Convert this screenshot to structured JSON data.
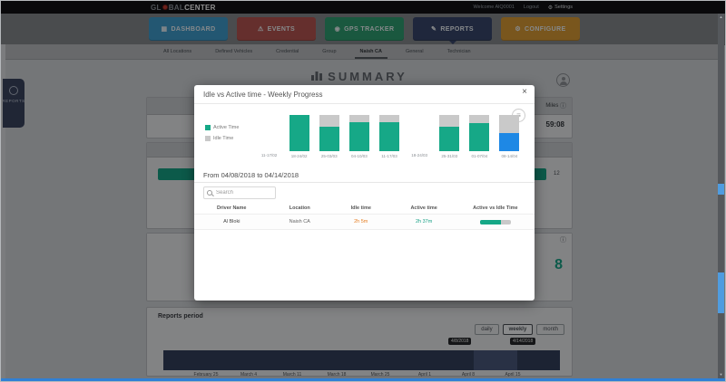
{
  "topbar": {
    "logo": {
      "prefix": "GL",
      "mid": "BAL",
      "suffix": "CENTER"
    },
    "welcome": "Welcome AlQ0001",
    "logout": "Logout",
    "settings": "Settings"
  },
  "nav": {
    "items": [
      {
        "id": "dashboard",
        "label": "DASHBOARD",
        "color": "#3f9ccc",
        "icon": "dashboard-icon",
        "active": false
      },
      {
        "id": "events",
        "label": "EVENTS",
        "color": "#b55550",
        "icon": "alert-icon",
        "active": false
      },
      {
        "id": "gps",
        "label": "GPS TRACKER",
        "color": "#2f9e70",
        "icon": "pin-icon",
        "active": false
      },
      {
        "id": "reports",
        "label": "REPORTS",
        "color": "#38466b",
        "icon": "pencil-icon",
        "active": true
      },
      {
        "id": "configure",
        "label": "CONFIGURE",
        "color": "#d89a35",
        "icon": "gear-icon",
        "active": false
      }
    ]
  },
  "subnav": {
    "items": [
      "All Locations",
      "Defined Vehicles",
      "Credential",
      "Group",
      "Naish CA",
      "General",
      "Technician"
    ],
    "active_index": 4
  },
  "page": {
    "title": "SUMMARY"
  },
  "side_handle": {
    "label": "REPORTS"
  },
  "panels": {
    "miles": {
      "title": "Miles",
      "value": "59:08"
    },
    "gauge": {
      "value": "12"
    },
    "stats": {
      "value": "8"
    }
  },
  "reports_period": {
    "title": "Reports period",
    "buttons": [
      "daily",
      "weekly",
      "month"
    ],
    "active_button": "weekly",
    "tooltip_start": "4/8/2018",
    "tooltip_end": "4/14/2018",
    "timeline_labels": [
      "February 25",
      "March 4",
      "March 11",
      "March 18",
      "March 25",
      "April 1",
      "April 8",
      "April 15"
    ]
  },
  "modal": {
    "title": "Idle vs Active time - Weekly Progress",
    "close_label": "×",
    "legend": [
      {
        "label": "Active Time",
        "color": "#16a887"
      },
      {
        "label": "Idle Time",
        "color": "#c9c9c9"
      }
    ],
    "chart_data": {
      "type": "bar",
      "stacked": "percent",
      "categories": [
        "11-17/02",
        "18-24/02",
        "25-03/03",
        "04-10/03",
        "11-17/03",
        "18-24/03",
        "25-31/03",
        "01-07/04",
        "08-14/04"
      ],
      "series": [
        {
          "name": "Active Time",
          "values": [
            null,
            100,
            68,
            81,
            81,
            null,
            68,
            77,
            51
          ]
        },
        {
          "name": "Idle Time",
          "values": [
            null,
            0,
            32,
            19,
            19,
            null,
            32,
            23,
            49
          ]
        }
      ],
      "selected_index": 8,
      "selected_color": "#1e88e5",
      "colors": {
        "active": "#16a887",
        "idle": "#c9c9c9"
      },
      "legend_position": "left",
      "grid": false
    },
    "date_range": "From 04/08/2018 to 04/14/2018",
    "search_placeholder": "Search",
    "table": {
      "headers": [
        "Driver Name",
        "Location",
        "Idle time",
        "Active time",
        "Active vs Idle Time"
      ],
      "rows": [
        {
          "driver": "Al Bloki",
          "location": "Naish CA",
          "idle": "2h 5m",
          "active": "2h 37m",
          "active_pct": 67
        }
      ]
    }
  }
}
